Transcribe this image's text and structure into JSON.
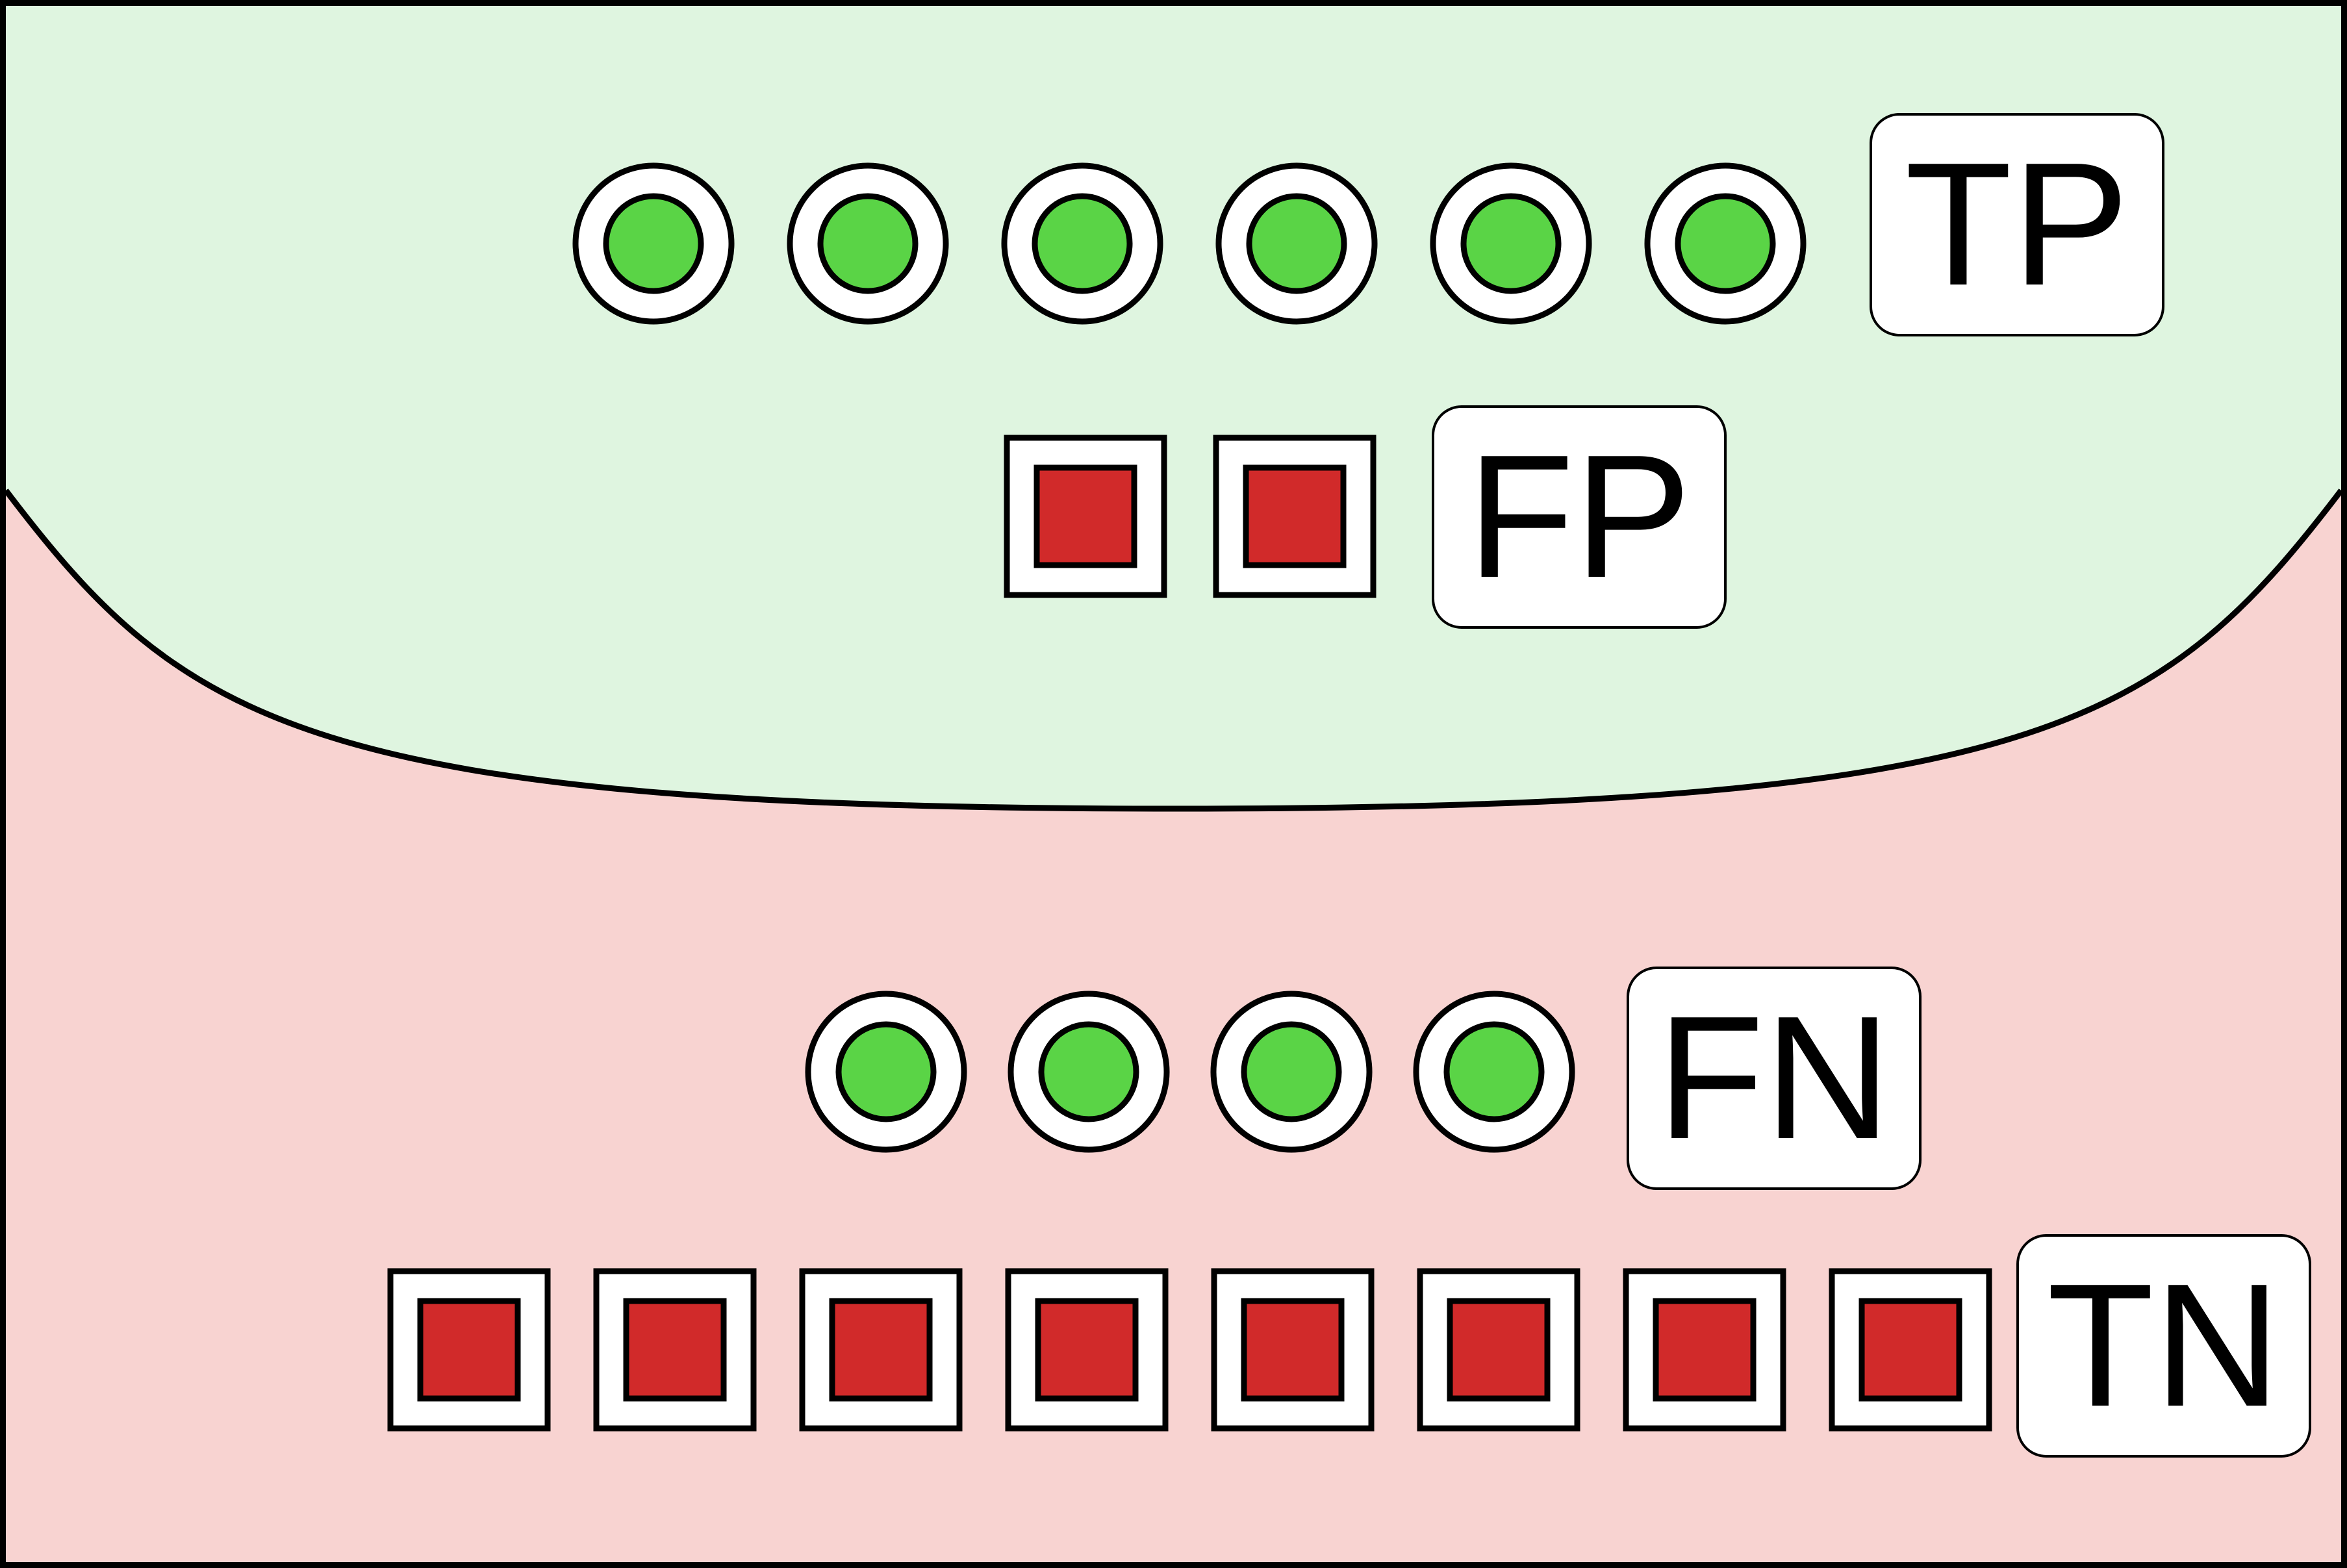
{
  "colors": {
    "positive_region": "#dff5e0",
    "negative_region": "#f8d3d1",
    "positive_item": "#5ad446",
    "negative_item": "#d12a2a",
    "outline": "#000000",
    "label_box": "#ffffff"
  },
  "groups": [
    {
      "id": "tp",
      "label": "TP",
      "shape": "circle",
      "count": 6,
      "region": "positive"
    },
    {
      "id": "fp",
      "label": "FP",
      "shape": "square",
      "count": 2,
      "region": "positive"
    },
    {
      "id": "fn",
      "label": "FN",
      "shape": "circle",
      "count": 4,
      "region": "negative"
    },
    {
      "id": "tn",
      "label": "TN",
      "shape": "square",
      "count": 8,
      "region": "negative"
    }
  ]
}
